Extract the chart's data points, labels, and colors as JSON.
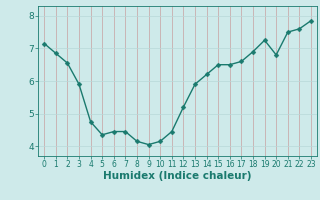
{
  "x": [
    0,
    1,
    2,
    3,
    4,
    5,
    6,
    7,
    8,
    9,
    10,
    11,
    12,
    13,
    14,
    15,
    16,
    17,
    18,
    19,
    20,
    21,
    22,
    23
  ],
  "y": [
    7.15,
    6.85,
    6.55,
    5.9,
    4.75,
    4.35,
    4.45,
    4.45,
    4.15,
    4.05,
    4.15,
    4.45,
    5.2,
    5.9,
    6.2,
    6.5,
    6.5,
    6.6,
    6.9,
    7.25,
    6.8,
    7.5,
    7.6,
    7.85
  ],
  "line_color": "#1a7a6e",
  "marker": "D",
  "marker_size": 2.5,
  "bg_color": "#ceeaea",
  "grid_color_v": "#c8a0a0",
  "grid_color_h": "#b8d8d8",
  "xlabel": "Humidex (Indice chaleur)",
  "xlabel_fontsize": 7.5,
  "yticks": [
    4,
    5,
    6,
    7,
    8
  ],
  "xticks": [
    0,
    1,
    2,
    3,
    4,
    5,
    6,
    7,
    8,
    9,
    10,
    11,
    12,
    13,
    14,
    15,
    16,
    17,
    18,
    19,
    20,
    21,
    22,
    23
  ],
  "ylim": [
    3.7,
    8.3
  ],
  "xlim": [
    -0.5,
    23.5
  ]
}
